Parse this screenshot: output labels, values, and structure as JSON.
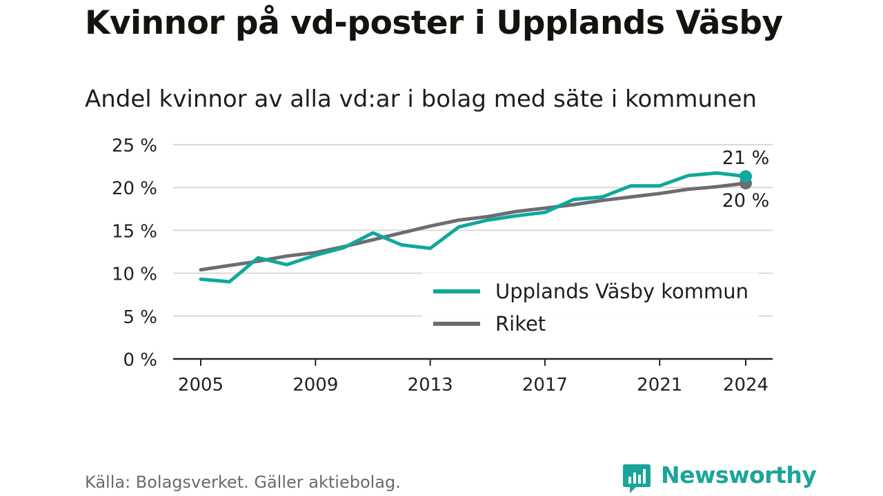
{
  "title": "Kvinnor på vd-poster i Upplands Väsby",
  "subtitle": "Andel kvinnor av alla vd:ar i bolag med säte i kommunen",
  "footer": {
    "source": "Källa: Bolagsverket. Gäller aktiebolag.",
    "brand": "Newsworthy"
  },
  "colors": {
    "kommun": "#0fa89b",
    "riket": "#6e6c73",
    "grid": "#d9d9d9",
    "axis": "#222222",
    "brand": "#1aa59a"
  },
  "chart_data": {
    "type": "line",
    "x": [
      2005,
      2006,
      2007,
      2008,
      2009,
      2010,
      2011,
      2012,
      2013,
      2014,
      2015,
      2016,
      2017,
      2018,
      2019,
      2020,
      2021,
      2022,
      2023,
      2024
    ],
    "ylim": [
      0,
      25
    ],
    "yticks": [
      0,
      5,
      10,
      15,
      20,
      25
    ],
    "ytick_labels": [
      "0 %",
      "5 %",
      "10 %",
      "15 %",
      "20 %",
      "25 %"
    ],
    "xticks": [
      2005,
      2009,
      2013,
      2017,
      2021,
      2024
    ],
    "xtick_labels": [
      "2005",
      "2009",
      "2013",
      "2017",
      "2021",
      "2024"
    ],
    "grid": true,
    "legend_position": "lower-right",
    "series": [
      {
        "name": "Upplands Väsby kommun",
        "values": [
          9.3,
          9.0,
          11.8,
          11.0,
          12.1,
          13.0,
          14.7,
          13.3,
          12.9,
          15.4,
          16.2,
          16.7,
          17.1,
          18.6,
          18.9,
          20.2,
          20.2,
          21.4,
          21.7,
          21.3
        ],
        "end_label": "21 %"
      },
      {
        "name": "Riket",
        "values": [
          10.4,
          10.9,
          11.4,
          12.0,
          12.4,
          13.1,
          13.9,
          14.7,
          15.5,
          16.2,
          16.6,
          17.2,
          17.6,
          18.0,
          18.5,
          18.9,
          19.3,
          19.8,
          20.1,
          20.5
        ],
        "end_label": "20 %"
      }
    ]
  }
}
